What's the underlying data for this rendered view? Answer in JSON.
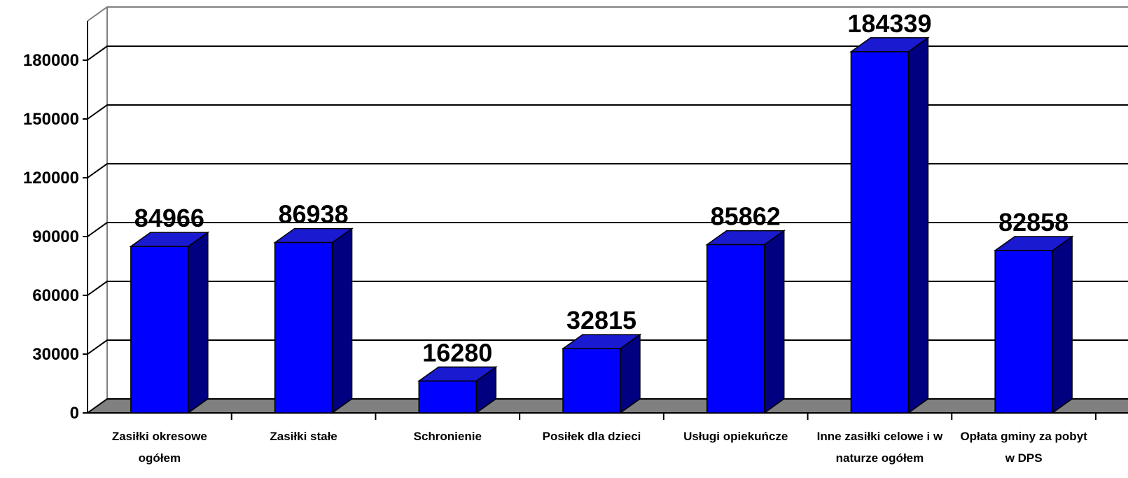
{
  "chart_data": {
    "type": "bar3d",
    "categories": [
      "Zasiłki okresowe ogółem",
      "Zasiłki stałe",
      "Schronienie",
      "Posiłek dla dzieci",
      "Usługi opiekuńcze",
      "Inne zasiłki celowe i w naturze ogółem",
      "Opłata gminy za pobyt w DPS"
    ],
    "values": [
      84966,
      86938,
      16280,
      32815,
      85862,
      184339,
      82858
    ],
    "color": "#0000ff",
    "ylim": [
      0,
      200000
    ],
    "yticks": [
      0,
      30000,
      60000,
      90000,
      120000,
      150000,
      180000
    ],
    "grid": true
  }
}
